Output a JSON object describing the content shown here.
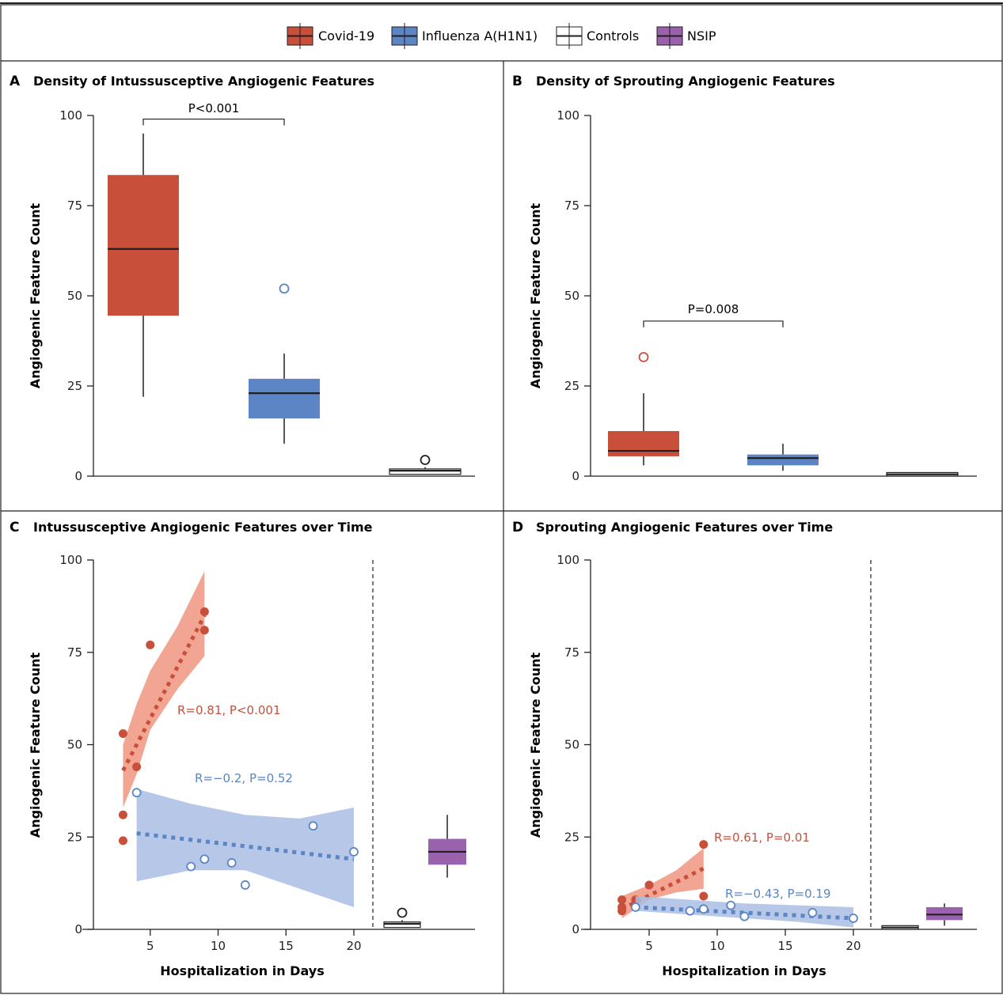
{
  "legend": [
    {
      "label": "Covid-19",
      "color": "#c8503a",
      "median_color": "#231f20"
    },
    {
      "label": "Influenza A(H1N1)",
      "color": "#5b85c5",
      "median_color": "#231f20"
    },
    {
      "label": "Controls",
      "color": "#ffffff",
      "median_color": "#231f20"
    },
    {
      "label": "NSIP",
      "color": "#9a62ad",
      "median_color": "#231f20"
    }
  ],
  "colors": {
    "covid": "#c8503a",
    "covid_band": "#f08f78",
    "flu": "#5b85c5",
    "flu_band": "#a9bde3",
    "nsip": "#9a62ad",
    "axis": "#231f20"
  },
  "panels": {
    "A": {
      "letter": "A",
      "title": "Density of Intussusceptive Angiogenic Features",
      "ylabel": "Angiogenic Feature Count",
      "pvalue": "P<0.001"
    },
    "B": {
      "letter": "B",
      "title": "Density of Sprouting Angiogenic Features",
      "ylabel": "Angiogenic Feature Count",
      "pvalue": "P=0.008"
    },
    "C": {
      "letter": "C",
      "title": "Intussusceptive Angiogenic Features over Time",
      "ylabel": "Angiogenic Feature Count",
      "xlabel": "Hospitalization in Days",
      "covid_stat": "R=0.81, P<0.001",
      "flu_stat": "R=−0.2, P=0.52"
    },
    "D": {
      "letter": "D",
      "title": "Sprouting Angiogenic Features over Time",
      "ylabel": "Angiogenic Feature Count",
      "xlabel": "Hospitalization in Days",
      "covid_stat": "R=0.61, P=0.01",
      "flu_stat": "R=−0.43, P=0.19"
    }
  },
  "chart_data": [
    {
      "panel": "A",
      "type": "box",
      "title": "Density of Intussusceptive Angiogenic Features",
      "ylabel": "Angiogenic Feature Count",
      "ylim": [
        0,
        100
      ],
      "yticks": [
        0,
        25,
        50,
        75,
        100
      ],
      "boxes": [
        {
          "group": "Covid-19",
          "min": 22,
          "q1": 44.5,
          "median": 63,
          "q3": 83.5,
          "max": 95,
          "outliers": []
        },
        {
          "group": "Influenza A(H1N1)",
          "min": 9,
          "q1": 16,
          "median": 23,
          "q3": 27,
          "max": 34,
          "outliers": [
            52
          ]
        },
        {
          "group": "Controls",
          "min": 0.5,
          "q1": 0.5,
          "median": 1.5,
          "q3": 2,
          "max": 2.5,
          "outliers": [
            4.5
          ]
        }
      ],
      "comparisons": [
        {
          "between": [
            "Covid-19",
            "Influenza A(H1N1)"
          ],
          "label": "P<0.001",
          "y": 99
        }
      ]
    },
    {
      "panel": "B",
      "type": "box",
      "title": "Density of Sprouting Angiogenic Features",
      "ylabel": "Angiogenic Feature Count",
      "ylim": [
        0,
        100
      ],
      "yticks": [
        0,
        25,
        50,
        75,
        100
      ],
      "boxes": [
        {
          "group": "Covid-19",
          "min": 3,
          "q1": 5.5,
          "median": 7,
          "q3": 12.5,
          "max": 23,
          "outliers": [
            33
          ]
        },
        {
          "group": "Influenza A(H1N1)",
          "min": 1.5,
          "q1": 3,
          "median": 5,
          "q3": 6,
          "max": 9,
          "outliers": []
        },
        {
          "group": "Controls",
          "min": 0,
          "q1": 0,
          "median": 0.5,
          "q3": 1,
          "max": 1,
          "outliers": []
        }
      ],
      "comparisons": [
        {
          "between": [
            "Covid-19",
            "Influenza A(H1N1)"
          ],
          "label": "P=0.008",
          "y": 43
        }
      ]
    },
    {
      "panel": "C",
      "type": "scatter",
      "title": "Intussusceptive Angiogenic Features over Time",
      "xlabel": "Hospitalization in Days",
      "ylabel": "Angiogenic Feature Count",
      "xlim": [
        0,
        23
      ],
      "ylim": [
        0,
        100
      ],
      "xticks": [
        5,
        10,
        15,
        20
      ],
      "yticks": [
        0,
        25,
        50,
        75,
        100
      ],
      "series": [
        {
          "name": "Covid-19",
          "marker": "filled",
          "points": [
            [
              3,
              53
            ],
            [
              3,
              31
            ],
            [
              3,
              24
            ],
            [
              4,
              44
            ],
            [
              5,
              77
            ],
            [
              9,
              86
            ],
            [
              9,
              81
            ]
          ],
          "fit": {
            "x": [
              3,
              9
            ],
            "y": [
              43,
              85
            ]
          },
          "band": {
            "x": [
              3,
              4,
              5,
              7,
              9
            ],
            "upper": [
              50,
              61,
              70,
              82,
              97
            ],
            "lower": [
              33,
              42,
              54,
              65,
              74
            ]
          }
        },
        {
          "name": "Influenza A(H1N1)",
          "marker": "open",
          "points": [
            [
              4,
              37
            ],
            [
              8,
              17
            ],
            [
              9,
              19
            ],
            [
              11,
              18
            ],
            [
              12,
              12
            ],
            [
              17,
              28
            ],
            [
              20,
              21
            ]
          ],
          "fit": {
            "x": [
              4,
              20
            ],
            "y": [
              26,
              19
            ]
          },
          "band": {
            "x": [
              4,
              8,
              12,
              16,
              20
            ],
            "upper": [
              38,
              34,
              31,
              30,
              33
            ],
            "lower": [
              13,
              16,
              16,
              11,
              6
            ]
          }
        }
      ],
      "reference_boxes": [
        {
          "group": "Controls",
          "min": 0.5,
          "q1": 0.5,
          "median": 1.5,
          "q3": 2,
          "max": 2.5,
          "outliers": [
            4.5
          ]
        },
        {
          "group": "NSIP",
          "min": 14,
          "q1": 17.5,
          "median": 21,
          "q3": 24.5,
          "max": 31,
          "outliers": []
        }
      ]
    },
    {
      "panel": "D",
      "type": "scatter",
      "title": "Sprouting Angiogenic Features over Time",
      "xlabel": "Hospitalization in Days",
      "ylabel": "Angiogenic Feature Count",
      "xlim": [
        0,
        23
      ],
      "ylim": [
        0,
        100
      ],
      "xticks": [
        5,
        10,
        15,
        20
      ],
      "yticks": [
        0,
        25,
        50,
        75,
        100
      ],
      "series": [
        {
          "name": "Covid-19",
          "marker": "filled",
          "points": [
            [
              3,
              8
            ],
            [
              3,
              6
            ],
            [
              3,
              5
            ],
            [
              4,
              8
            ],
            [
              5,
              12
            ],
            [
              9,
              23
            ],
            [
              9,
              9
            ]
          ],
          "fit": {
            "x": [
              3,
              9
            ],
            "y": [
              5.5,
              16.5
            ]
          },
          "band": {
            "x": [
              3,
              5,
              7,
              9
            ],
            "upper": [
              9,
              12,
              16,
              22
            ],
            "lower": [
              3,
              8,
              10,
              11
            ]
          }
        },
        {
          "name": "Influenza A(H1N1)",
          "marker": "open",
          "points": [
            [
              4,
              6
            ],
            [
              8,
              5
            ],
            [
              9,
              5.5
            ],
            [
              11,
              6.5
            ],
            [
              12,
              3.5
            ],
            [
              17,
              4.5
            ],
            [
              20,
              3
            ]
          ],
          "fit": {
            "x": [
              4,
              20
            ],
            "y": [
              6,
              3
            ]
          },
          "band": {
            "x": [
              4,
              8,
              12,
              16,
              20
            ],
            "upper": [
              9,
              8,
              7,
              6.5,
              6
            ],
            "lower": [
              5,
              4,
              3,
              2,
              0.5
            ]
          }
        }
      ],
      "reference_boxes": [
        {
          "group": "Controls",
          "min": 0,
          "q1": 0,
          "median": 0.5,
          "q3": 1,
          "max": 1,
          "outliers": []
        },
        {
          "group": "NSIP",
          "min": 1,
          "q1": 2.5,
          "median": 4,
          "q3": 6,
          "max": 7,
          "outliers": []
        }
      ]
    }
  ]
}
